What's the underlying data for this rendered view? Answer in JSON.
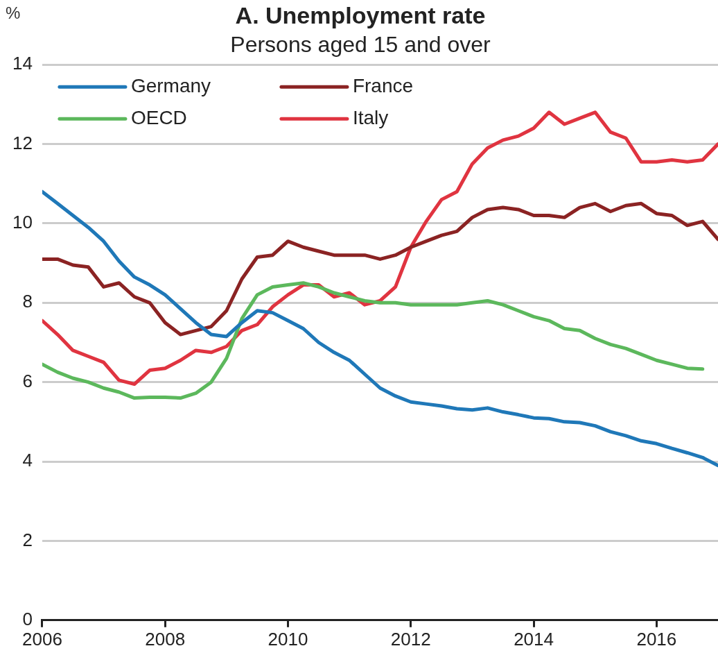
{
  "chart_data": {
    "type": "line",
    "title": "A. Unemployment rate",
    "subtitle": "Persons aged 15 and over",
    "ylabel": "%",
    "x": [
      2006,
      2006.25,
      2006.5,
      2006.75,
      2007,
      2007.25,
      2007.5,
      2007.75,
      2008,
      2008.25,
      2008.5,
      2008.75,
      2009,
      2009.25,
      2009.5,
      2009.75,
      2010,
      2010.25,
      2010.5,
      2010.75,
      2011,
      2011.25,
      2011.5,
      2011.75,
      2012,
      2012.25,
      2012.5,
      2012.75,
      2013,
      2013.25,
      2013.5,
      2013.75,
      2014,
      2014.25,
      2014.5,
      2014.75,
      2015,
      2015.25,
      2015.5,
      2015.75,
      2016,
      2016.25,
      2016.5,
      2016.75,
      2017
    ],
    "series": [
      {
        "name": "Germany",
        "color": "#1f78b8",
        "values": [
          10.8,
          10.5,
          10.2,
          9.9,
          9.55,
          9.05,
          8.65,
          8.45,
          8.2,
          7.85,
          7.5,
          7.2,
          7.15,
          7.5,
          7.8,
          7.75,
          7.55,
          7.35,
          7.0,
          6.75,
          6.55,
          6.2,
          5.85,
          5.65,
          5.5,
          5.45,
          5.4,
          5.33,
          5.3,
          5.35,
          5.25,
          5.18,
          5.1,
          5.08,
          5.0,
          4.98,
          4.9,
          4.75,
          4.65,
          4.52,
          4.45,
          4.33,
          4.22,
          4.1,
          3.9
        ]
      },
      {
        "name": "France",
        "color": "#8b2323",
        "values": [
          9.1,
          9.1,
          8.95,
          8.9,
          8.4,
          8.5,
          8.15,
          8.0,
          7.5,
          7.2,
          7.3,
          7.4,
          7.8,
          8.6,
          9.15,
          9.2,
          9.55,
          9.4,
          9.3,
          9.2,
          9.2,
          9.2,
          9.1,
          9.2,
          9.4,
          9.55,
          9.7,
          9.8,
          10.15,
          10.35,
          10.4,
          10.35,
          10.2,
          10.2,
          10.15,
          10.4,
          10.5,
          10.3,
          10.45,
          10.5,
          10.25,
          10.2,
          9.95,
          10.05,
          9.6
        ]
      },
      {
        "name": "OECD",
        "color": "#5cb85c",
        "values": [
          6.45,
          6.25,
          6.1,
          6.0,
          5.85,
          5.75,
          5.6,
          5.62,
          5.62,
          5.6,
          5.72,
          6.0,
          6.6,
          7.6,
          8.2,
          8.4,
          8.45,
          8.5,
          8.4,
          8.25,
          8.15,
          8.05,
          8.0,
          8.0,
          7.95,
          7.95,
          7.95,
          7.95,
          8.0,
          8.05,
          7.95,
          7.8,
          7.65,
          7.55,
          7.35,
          7.3,
          7.1,
          6.95,
          6.85,
          6.7,
          6.55,
          6.45,
          6.35,
          6.33,
          null
        ]
      },
      {
        "name": "Italy",
        "color": "#e03440",
        "values": [
          7.55,
          7.2,
          6.8,
          6.65,
          6.5,
          6.05,
          5.95,
          6.3,
          6.35,
          6.55,
          6.8,
          6.75,
          6.9,
          7.3,
          7.45,
          7.9,
          8.2,
          8.45,
          8.45,
          8.15,
          8.25,
          7.95,
          8.05,
          8.4,
          9.4,
          10.05,
          10.6,
          10.8,
          11.5,
          11.9,
          12.1,
          12.2,
          12.4,
          12.8,
          12.5,
          12.65,
          12.8,
          12.3,
          12.15,
          11.55,
          11.55,
          11.6,
          11.55,
          11.6,
          12.0
        ]
      }
    ],
    "xlim": [
      2006,
      2017
    ],
    "xticks": [
      2006,
      2008,
      2010,
      2012,
      2014,
      2016
    ],
    "ylim": [
      0,
      14
    ],
    "yticks": [
      0,
      2,
      4,
      6,
      8,
      10,
      12,
      14
    ],
    "grid": "y",
    "legend": "top left",
    "marker": "none",
    "line_style": "solid"
  }
}
